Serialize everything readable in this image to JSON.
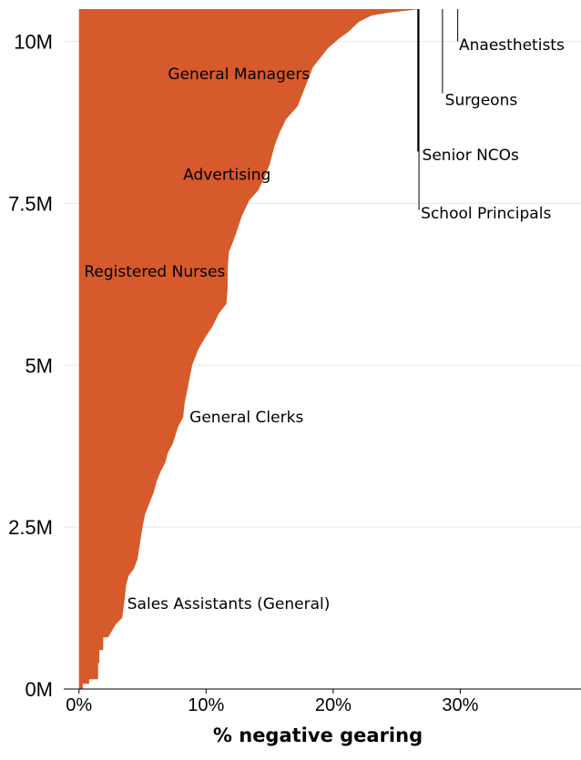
{
  "chart_data": {
    "type": "area",
    "xlabel": "% negative gearing",
    "ylabel": "",
    "xlim": [
      -1.2,
      39.5
    ],
    "ylim": [
      0,
      10.5
    ],
    "fill_color": "#d65a2b",
    "x_ticks": [
      {
        "value": 0,
        "label": "0%"
      },
      {
        "value": 10,
        "label": "10%"
      },
      {
        "value": 20,
        "label": "20%"
      },
      {
        "value": 30,
        "label": "30%"
      }
    ],
    "y_ticks": [
      {
        "value": 0,
        "label": "0M"
      },
      {
        "value": 2.5,
        "label": "2.5M"
      },
      {
        "value": 5,
        "label": "5M"
      },
      {
        "value": 7.5,
        "label": "7.5M"
      },
      {
        "value": 10,
        "label": "10M"
      }
    ],
    "series": [
      {
        "y_unit": "M",
        "points": [
          [
            0.0,
            0.0
          ],
          [
            0.3,
            0.0
          ],
          [
            0.3,
            0.08
          ],
          [
            0.8,
            0.08
          ],
          [
            0.8,
            0.15
          ],
          [
            1.5,
            0.15
          ],
          [
            1.5,
            0.4
          ],
          [
            1.6,
            0.4
          ],
          [
            1.6,
            0.6
          ],
          [
            1.9,
            0.6
          ],
          [
            1.9,
            0.8
          ],
          [
            2.3,
            0.8
          ],
          [
            2.6,
            0.9
          ],
          [
            2.9,
            1.0
          ],
          [
            3.4,
            1.1
          ],
          [
            3.5,
            1.25
          ],
          [
            3.6,
            1.4
          ],
          [
            3.7,
            1.6
          ],
          [
            3.9,
            1.75
          ],
          [
            4.3,
            1.85
          ],
          [
            4.6,
            2.0
          ],
          [
            4.8,
            2.25
          ],
          [
            5.0,
            2.5
          ],
          [
            5.2,
            2.7
          ],
          [
            5.6,
            2.9
          ],
          [
            5.9,
            3.05
          ],
          [
            6.1,
            3.2
          ],
          [
            6.4,
            3.35
          ],
          [
            6.8,
            3.5
          ],
          [
            7.0,
            3.65
          ],
          [
            7.4,
            3.8
          ],
          [
            7.8,
            4.05
          ],
          [
            8.2,
            4.2
          ],
          [
            8.3,
            4.4
          ],
          [
            8.6,
            4.7
          ],
          [
            8.9,
            5.0
          ],
          [
            9.4,
            5.25
          ],
          [
            10.0,
            5.45
          ],
          [
            10.5,
            5.6
          ],
          [
            11.0,
            5.8
          ],
          [
            11.6,
            5.95
          ],
          [
            11.7,
            6.2
          ],
          [
            11.7,
            6.5
          ],
          [
            11.8,
            6.75
          ],
          [
            12.3,
            7.0
          ],
          [
            12.8,
            7.3
          ],
          [
            13.4,
            7.55
          ],
          [
            14.1,
            7.7
          ],
          [
            14.6,
            7.9
          ],
          [
            15.0,
            8.1
          ],
          [
            15.4,
            8.4
          ],
          [
            15.8,
            8.6
          ],
          [
            16.3,
            8.8
          ],
          [
            17.2,
            9.0
          ],
          [
            17.6,
            9.2
          ],
          [
            18.0,
            9.4
          ],
          [
            18.4,
            9.6
          ],
          [
            19.0,
            9.75
          ],
          [
            19.6,
            9.9
          ],
          [
            20.5,
            10.05
          ],
          [
            21.2,
            10.15
          ],
          [
            22.0,
            10.3
          ],
          [
            23.0,
            10.4
          ],
          [
            24.5,
            10.45
          ],
          [
            26.0,
            10.48
          ],
          [
            26.8,
            10.5
          ]
        ]
      }
    ],
    "annotations": [
      {
        "label": "Anaesthetists",
        "x": 29.9,
        "y": 9.95,
        "line_x": 29.8,
        "line_top": 10.5,
        "line_bottom": 10.0,
        "line_width": 1
      },
      {
        "label": "Surgeons",
        "x": 28.8,
        "y": 9.1,
        "line_x": 28.6,
        "line_top": 10.5,
        "line_bottom": 9.2,
        "line_width": 1
      },
      {
        "label": "Senior NCOs",
        "x": 27.0,
        "y": 8.25,
        "line_x": 26.7,
        "line_top": 10.5,
        "line_bottom": 8.3,
        "line_width": 2.2
      },
      {
        "label": "School Principals",
        "x": 26.9,
        "y": 7.35,
        "line_x": 26.75,
        "line_top": 10.5,
        "line_bottom": 7.4,
        "line_width": 1
      },
      {
        "label": "General Managers",
        "x": 7.0,
        "y": 9.5,
        "line_x": null
      },
      {
        "label": "Advertising",
        "x": 8.2,
        "y": 7.95,
        "line_x": null
      },
      {
        "label": "Registered Nurses",
        "x": 0.4,
        "y": 6.45,
        "line_x": null
      },
      {
        "label": "General Clerks",
        "x": 8.7,
        "y": 4.2,
        "line_x": null
      },
      {
        "label": "Sales Assistants (General)",
        "x": 3.8,
        "y": 1.32,
        "line_x": null
      }
    ]
  }
}
